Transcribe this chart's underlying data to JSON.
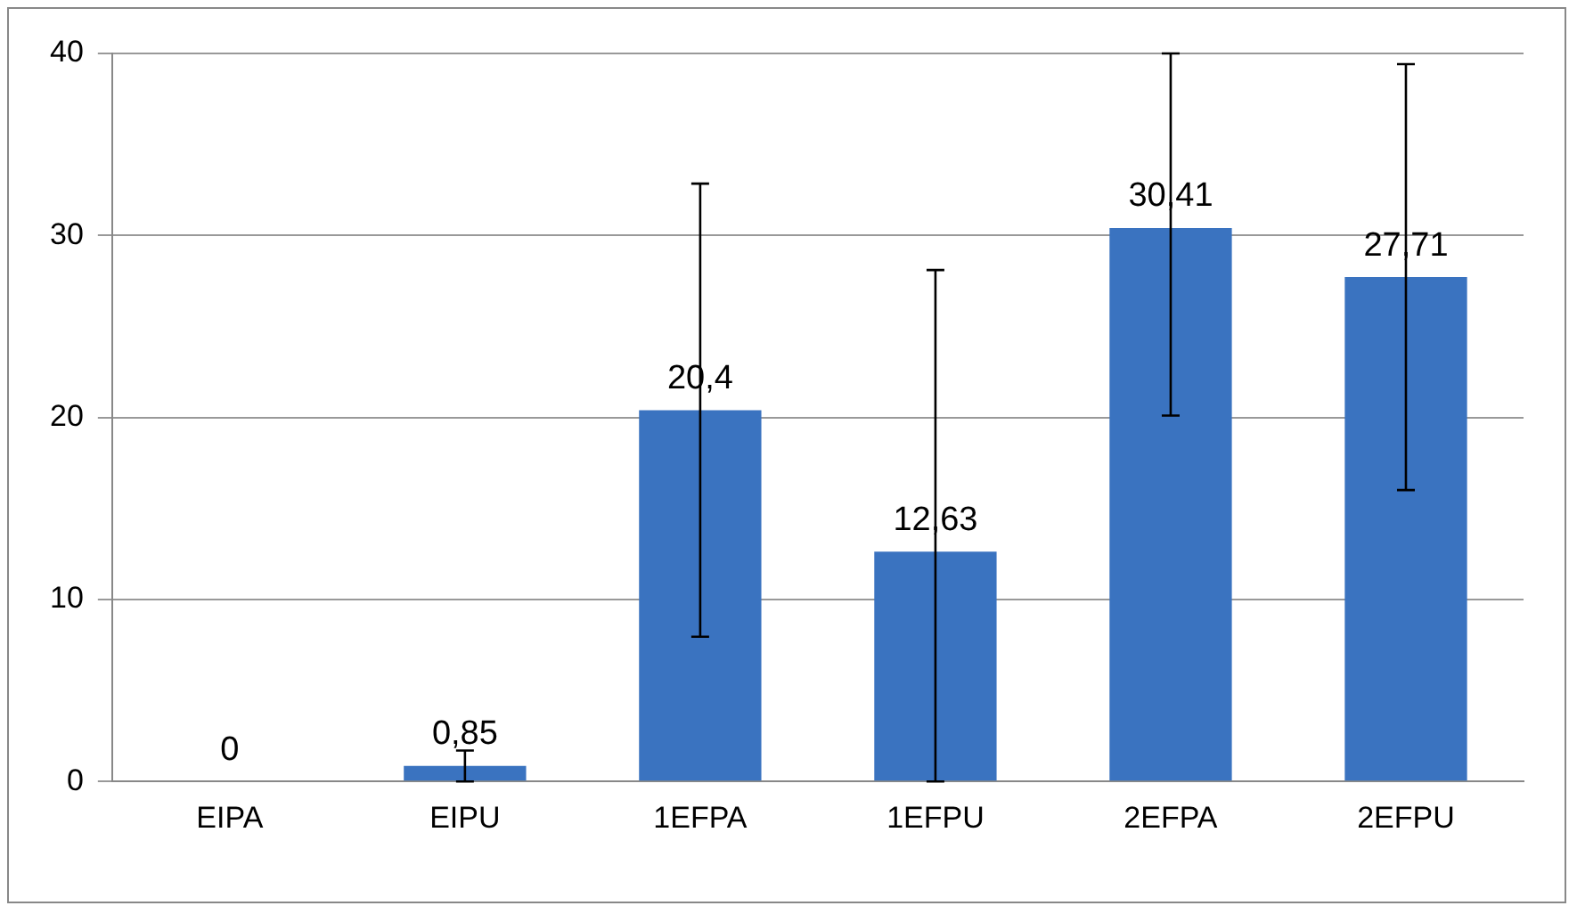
{
  "chart_data": {
    "type": "bar",
    "categories": [
      "EIPA",
      "EIPU",
      "1EFPA",
      "1EFPU",
      "2EFPA",
      "2EFPU"
    ],
    "values": [
      0,
      0.85,
      20.4,
      12.63,
      30.41,
      27.71
    ],
    "errors": [
      null,
      0.85,
      12.45,
      [
        0,
        28.1
      ],
      [
        20.1,
        40
      ],
      11.7
    ],
    "color": "#3a73c0",
    "ylim": [
      0,
      40
    ],
    "yticks": [
      0,
      10,
      20,
      30,
      40
    ],
    "grid": "y",
    "legend": false,
    "value_labels": [
      "0",
      "0,85",
      "20,4",
      "12,63",
      "30,41",
      "27,71"
    ]
  }
}
